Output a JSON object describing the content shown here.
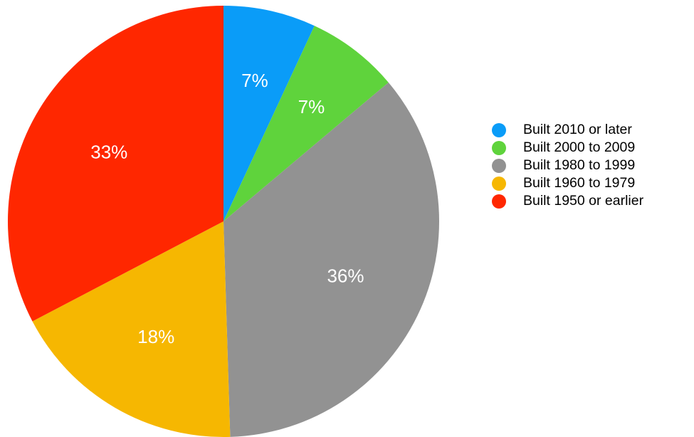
{
  "chart_data": {
    "type": "pie",
    "start_angle": "12 o'clock",
    "direction": "clockwise",
    "slices": [
      {
        "label": "Built 2010 or later",
        "value": 7,
        "value_label": "7%",
        "color": "#0A9CF8"
      },
      {
        "label": "Built 2000 to 2009",
        "value": 7,
        "value_label": "7%",
        "color": "#5FD33C"
      },
      {
        "label": "Built 1980 to 1999",
        "value": 36,
        "value_label": "36%",
        "color": "#929292"
      },
      {
        "label": "Built 1960 to 1979",
        "value": 18,
        "value_label": "18%",
        "color": "#F6B701"
      },
      {
        "label": "Built 1950 or earlier",
        "value": 33,
        "value_label": "33%",
        "color": "#FF2700"
      }
    ],
    "legend_position": "right"
  }
}
